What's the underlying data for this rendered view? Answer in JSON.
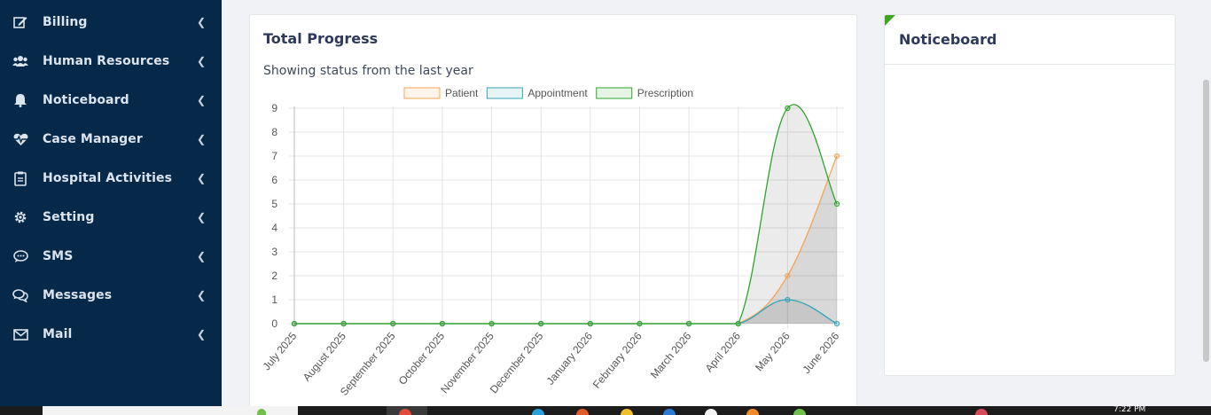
{
  "sidebar": {
    "items": [
      {
        "label": "Billing",
        "icon": "edit-icon"
      },
      {
        "label": "Human Resources",
        "icon": "users-icon"
      },
      {
        "label": "Noticeboard",
        "icon": "bell-icon"
      },
      {
        "label": "Case Manager",
        "icon": "heartbeat-icon"
      },
      {
        "label": "Hospital Activities",
        "icon": "clipboard-icon"
      },
      {
        "label": "Setting",
        "icon": "gear-icon"
      },
      {
        "label": "SMS",
        "icon": "chat-icon"
      },
      {
        "label": "Messages",
        "icon": "comments-icon"
      },
      {
        "label": "Mail",
        "icon": "envelope-icon"
      }
    ]
  },
  "progress": {
    "title": "Total Progress",
    "subtitle": "Showing status from the last year"
  },
  "noticeboard": {
    "title": "Noticeboard"
  },
  "taskbar": {
    "clock": "7:22 PM"
  },
  "colors": {
    "sidebar_bg": "#06294a",
    "patient": "#f5a454",
    "appointment": "#35a5b5",
    "prescription": "#2ba52b",
    "accent_flag": "#3fa51b"
  },
  "chart_data": {
    "type": "line",
    "categories": [
      "July 2025",
      "August 2025",
      "September 2025",
      "October 2025",
      "November 2025",
      "December 2025",
      "January 2026",
      "February 2026",
      "March 2026",
      "April 2026",
      "May 2026",
      "June 2026"
    ],
    "series": [
      {
        "name": "Patient",
        "values": [
          0,
          0,
          0,
          0,
          0,
          0,
          0,
          0,
          0,
          0,
          2,
          7
        ],
        "color": "#f5a454"
      },
      {
        "name": "Appointment",
        "values": [
          0,
          0,
          0,
          0,
          0,
          0,
          0,
          0,
          0,
          0,
          1,
          0
        ],
        "color": "#35a5b5"
      },
      {
        "name": "Prescription",
        "values": [
          0,
          0,
          0,
          0,
          0,
          0,
          0,
          0,
          0,
          0,
          9,
          5
        ],
        "color": "#2ba52b"
      }
    ],
    "yticks": [
      "0",
      "1",
      "2",
      "3",
      "4",
      "5",
      "6",
      "7",
      "8",
      "9"
    ],
    "ylim": [
      0,
      9
    ],
    "grid": true,
    "legend": "top-center",
    "fill": true
  }
}
